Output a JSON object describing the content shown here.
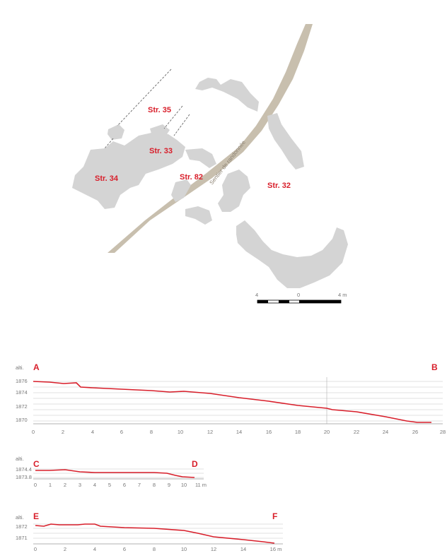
{
  "colors": {
    "accent": "#d81e2a",
    "feature_fill": "#d4d4d4",
    "path_fill": "#c8bfae",
    "grid": "#d7d7d7",
    "axis": "#999999"
  },
  "map": {
    "structures": [
      {
        "label": "Str. 35"
      },
      {
        "label": "Str. 33"
      },
      {
        "label": "Str. 34"
      },
      {
        "label": "Str. 82"
      },
      {
        "label": "Str. 32"
      }
    ],
    "path_label": "Sentier de randonnée",
    "scale": {
      "left": "4",
      "center": "0",
      "right": "4 m"
    }
  },
  "profiles": [
    {
      "axis_label": "alti.",
      "start_point": "A",
      "end_point": "B",
      "x_ticks": [
        "0",
        "2",
        "4",
        "6",
        "8",
        "10",
        "12",
        "14",
        "16",
        "18",
        "20",
        "22",
        "24",
        "26",
        "28"
      ],
      "y_ticks": [
        "1876",
        "1874",
        "1872",
        "1870"
      ]
    },
    {
      "axis_label": "alti.",
      "start_point": "C",
      "end_point": "D",
      "x_ticks": [
        "0",
        "1",
        "2",
        "3",
        "4",
        "5",
        "6",
        "7",
        "8",
        "9",
        "10",
        "11 m"
      ],
      "y_ticks": [
        "1874.4",
        "1873.8"
      ]
    },
    {
      "axis_label": "alti.",
      "start_point": "E",
      "end_point": "F",
      "x_ticks": [
        "0",
        "2",
        "4",
        "6",
        "8",
        "10",
        "12",
        "14",
        "16 m"
      ],
      "y_ticks": [
        "1872",
        "1871"
      ]
    }
  ]
}
